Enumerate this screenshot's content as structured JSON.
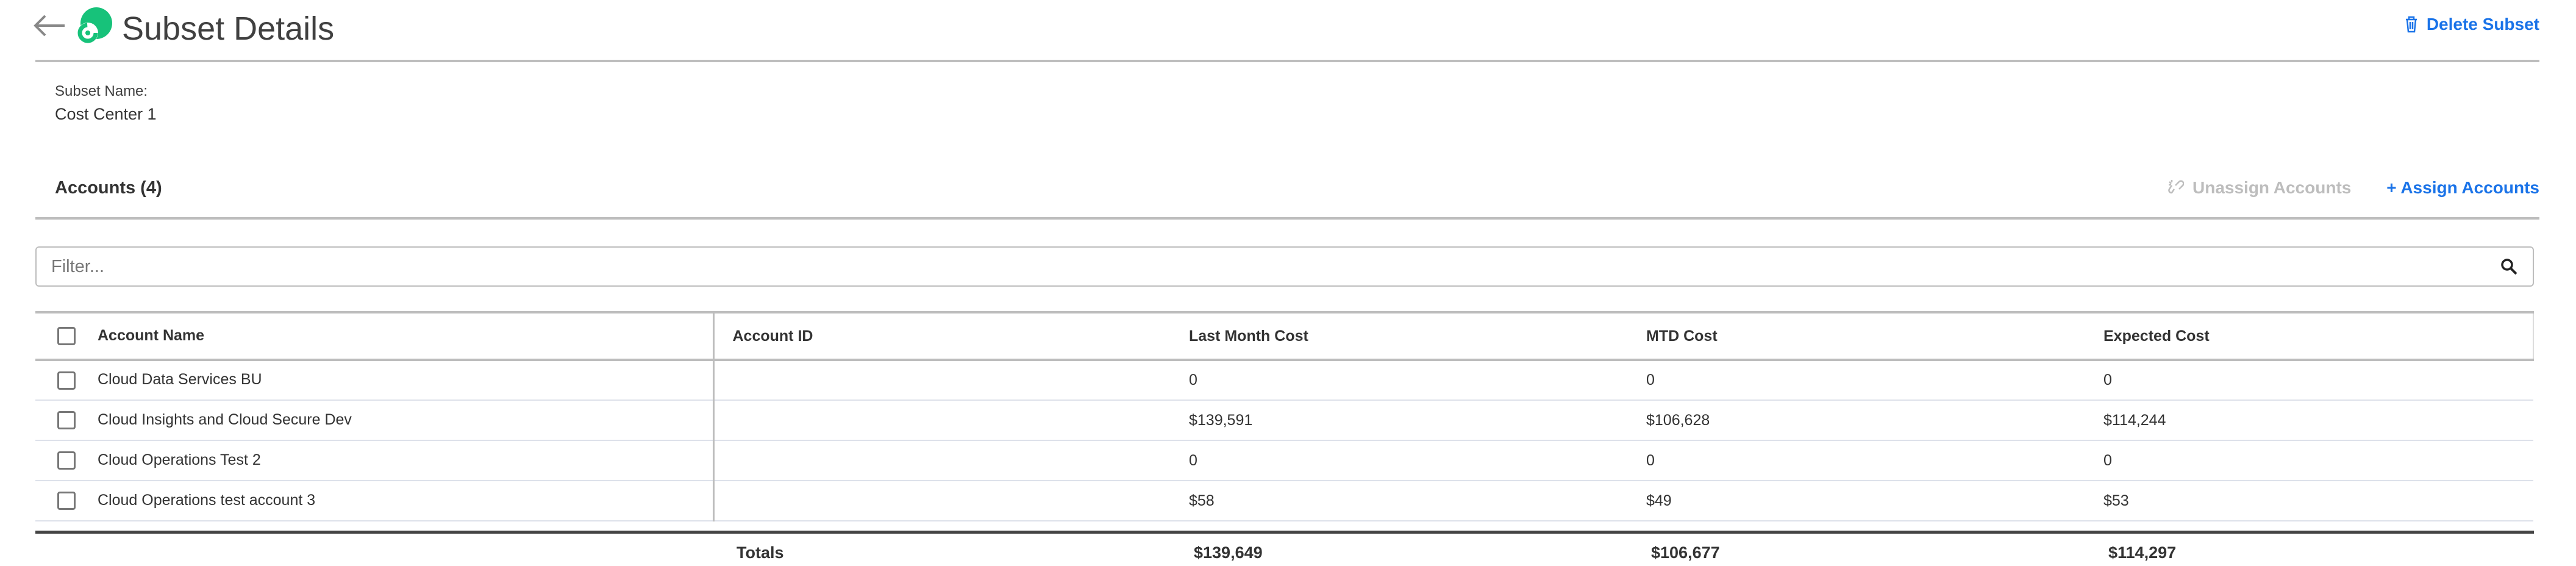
{
  "header": {
    "title": "Subset Details",
    "delete_label": "Delete Subset"
  },
  "subset": {
    "name_label": "Subset Name:",
    "name_value": "Cost Center 1"
  },
  "accounts": {
    "title": "Accounts (4)",
    "unassign_label": "Unassign Accounts",
    "assign_label": "+ Assign Accounts"
  },
  "filter": {
    "placeholder": "Filter...",
    "value": ""
  },
  "table": {
    "columns": [
      "Account Name",
      "Account ID",
      "Last Month Cost",
      "MTD Cost",
      "Expected Cost"
    ],
    "rows": [
      {
        "name": "Cloud Data Services BU",
        "id": "",
        "last": "0",
        "mtd": "0",
        "expected": "0"
      },
      {
        "name": "Cloud Insights and Cloud Secure Dev",
        "id": "",
        "last": "$139,591",
        "mtd": "$106,628",
        "expected": "$114,244"
      },
      {
        "name": "Cloud Operations Test 2",
        "id": "",
        "last": "0",
        "mtd": "0",
        "expected": "0"
      },
      {
        "name": "Cloud Operations test account 3",
        "id": "",
        "last": "$58",
        "mtd": "$49",
        "expected": "$53"
      }
    ],
    "totals": {
      "label": "Totals",
      "last": "$139,649",
      "mtd": "$106,677",
      "expected": "$114,297"
    }
  },
  "colors": {
    "accent": "#1a73e8",
    "logo": "#17c27a",
    "disabled": "#bdbdbd"
  }
}
